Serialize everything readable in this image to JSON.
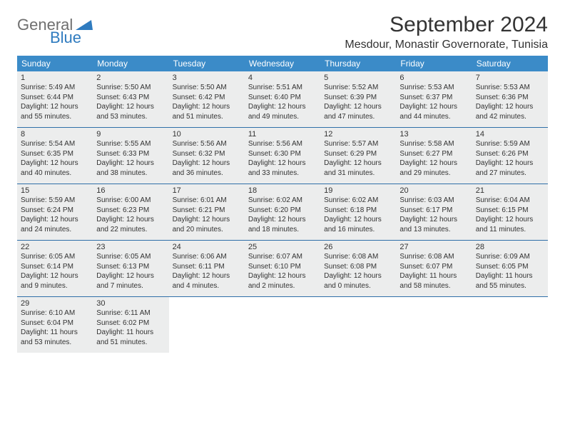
{
  "logo": {
    "textTop": "General",
    "textBottom": "Blue"
  },
  "title": "September 2024",
  "location": "Mesdour, Monastir Governorate, Tunisia",
  "colors": {
    "headerBar": "#3b8bc8",
    "weekDivider": "#2f6fa8",
    "dayBg": "#eceded",
    "logoGray": "#6f6f6f",
    "logoBlue": "#2f7bbf"
  },
  "weekdays": [
    "Sunday",
    "Monday",
    "Tuesday",
    "Wednesday",
    "Thursday",
    "Friday",
    "Saturday"
  ],
  "weeks": [
    [
      {
        "n": "1",
        "sr": "5:49 AM",
        "ss": "6:44 PM",
        "dl": "12 hours and 55 minutes."
      },
      {
        "n": "2",
        "sr": "5:50 AM",
        "ss": "6:43 PM",
        "dl": "12 hours and 53 minutes."
      },
      {
        "n": "3",
        "sr": "5:50 AM",
        "ss": "6:42 PM",
        "dl": "12 hours and 51 minutes."
      },
      {
        "n": "4",
        "sr": "5:51 AM",
        "ss": "6:40 PM",
        "dl": "12 hours and 49 minutes."
      },
      {
        "n": "5",
        "sr": "5:52 AM",
        "ss": "6:39 PM",
        "dl": "12 hours and 47 minutes."
      },
      {
        "n": "6",
        "sr": "5:53 AM",
        "ss": "6:37 PM",
        "dl": "12 hours and 44 minutes."
      },
      {
        "n": "7",
        "sr": "5:53 AM",
        "ss": "6:36 PM",
        "dl": "12 hours and 42 minutes."
      }
    ],
    [
      {
        "n": "8",
        "sr": "5:54 AM",
        "ss": "6:35 PM",
        "dl": "12 hours and 40 minutes."
      },
      {
        "n": "9",
        "sr": "5:55 AM",
        "ss": "6:33 PM",
        "dl": "12 hours and 38 minutes."
      },
      {
        "n": "10",
        "sr": "5:56 AM",
        "ss": "6:32 PM",
        "dl": "12 hours and 36 minutes."
      },
      {
        "n": "11",
        "sr": "5:56 AM",
        "ss": "6:30 PM",
        "dl": "12 hours and 33 minutes."
      },
      {
        "n": "12",
        "sr": "5:57 AM",
        "ss": "6:29 PM",
        "dl": "12 hours and 31 minutes."
      },
      {
        "n": "13",
        "sr": "5:58 AM",
        "ss": "6:27 PM",
        "dl": "12 hours and 29 minutes."
      },
      {
        "n": "14",
        "sr": "5:59 AM",
        "ss": "6:26 PM",
        "dl": "12 hours and 27 minutes."
      }
    ],
    [
      {
        "n": "15",
        "sr": "5:59 AM",
        "ss": "6:24 PM",
        "dl": "12 hours and 24 minutes."
      },
      {
        "n": "16",
        "sr": "6:00 AM",
        "ss": "6:23 PM",
        "dl": "12 hours and 22 minutes."
      },
      {
        "n": "17",
        "sr": "6:01 AM",
        "ss": "6:21 PM",
        "dl": "12 hours and 20 minutes."
      },
      {
        "n": "18",
        "sr": "6:02 AM",
        "ss": "6:20 PM",
        "dl": "12 hours and 18 minutes."
      },
      {
        "n": "19",
        "sr": "6:02 AM",
        "ss": "6:18 PM",
        "dl": "12 hours and 16 minutes."
      },
      {
        "n": "20",
        "sr": "6:03 AM",
        "ss": "6:17 PM",
        "dl": "12 hours and 13 minutes."
      },
      {
        "n": "21",
        "sr": "6:04 AM",
        "ss": "6:15 PM",
        "dl": "12 hours and 11 minutes."
      }
    ],
    [
      {
        "n": "22",
        "sr": "6:05 AM",
        "ss": "6:14 PM",
        "dl": "12 hours and 9 minutes."
      },
      {
        "n": "23",
        "sr": "6:05 AM",
        "ss": "6:13 PM",
        "dl": "12 hours and 7 minutes."
      },
      {
        "n": "24",
        "sr": "6:06 AM",
        "ss": "6:11 PM",
        "dl": "12 hours and 4 minutes."
      },
      {
        "n": "25",
        "sr": "6:07 AM",
        "ss": "6:10 PM",
        "dl": "12 hours and 2 minutes."
      },
      {
        "n": "26",
        "sr": "6:08 AM",
        "ss": "6:08 PM",
        "dl": "12 hours and 0 minutes."
      },
      {
        "n": "27",
        "sr": "6:08 AM",
        "ss": "6:07 PM",
        "dl": "11 hours and 58 minutes."
      },
      {
        "n": "28",
        "sr": "6:09 AM",
        "ss": "6:05 PM",
        "dl": "11 hours and 55 minutes."
      }
    ],
    [
      {
        "n": "29",
        "sr": "6:10 AM",
        "ss": "6:04 PM",
        "dl": "11 hours and 53 minutes."
      },
      {
        "n": "30",
        "sr": "6:11 AM",
        "ss": "6:02 PM",
        "dl": "11 hours and 51 minutes."
      },
      null,
      null,
      null,
      null,
      null
    ]
  ],
  "labels": {
    "sunrise": "Sunrise:",
    "sunset": "Sunset:",
    "daylight": "Daylight:"
  }
}
